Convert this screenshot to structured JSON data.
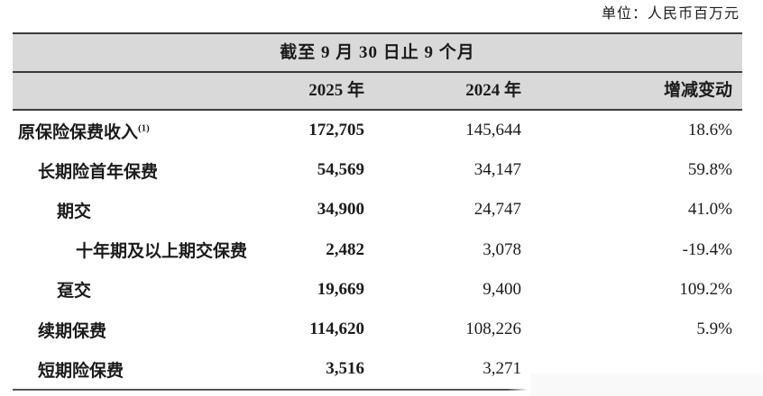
{
  "unit_label": "单位：人民币百万元",
  "table": {
    "span_header": "截至 9 月 30 日止 9 个月",
    "columns": [
      "2025 年",
      "2024 年",
      "增减变动"
    ],
    "rows": [
      {
        "label": "原保险保费收入",
        "sup": "(1)",
        "indent": 0,
        "v2025": "172,705",
        "v2024": "145,644",
        "change": "18.6%"
      },
      {
        "label": "长期险首年保费",
        "sup": "",
        "indent": 1,
        "v2025": "54,569",
        "v2024": "34,147",
        "change": "59.8%"
      },
      {
        "label": "期交",
        "sup": "",
        "indent": 2,
        "v2025": "34,900",
        "v2024": "24,747",
        "change": "41.0%"
      },
      {
        "label": "十年期及以上期交保费",
        "sup": "",
        "indent": 3,
        "v2025": "2,482",
        "v2024": "3,078",
        "change": "-19.4%"
      },
      {
        "label": "趸交",
        "sup": "",
        "indent": 2,
        "v2025": "19,669",
        "v2024": "9,400",
        "change": "109.2%"
      },
      {
        "label": "续期保费",
        "sup": "",
        "indent": 1,
        "v2025": "114,620",
        "v2024": "108,226",
        "change": "5.9%"
      },
      {
        "label": "短期险保费",
        "sup": "",
        "indent": 1,
        "v2025": "3,516",
        "v2024": "3,271",
        "change": ""
      }
    ],
    "colors": {
      "header_bg": "#d9d9d9",
      "line_dark": "#3b3b3b",
      "text": "#1b1b1b"
    }
  }
}
